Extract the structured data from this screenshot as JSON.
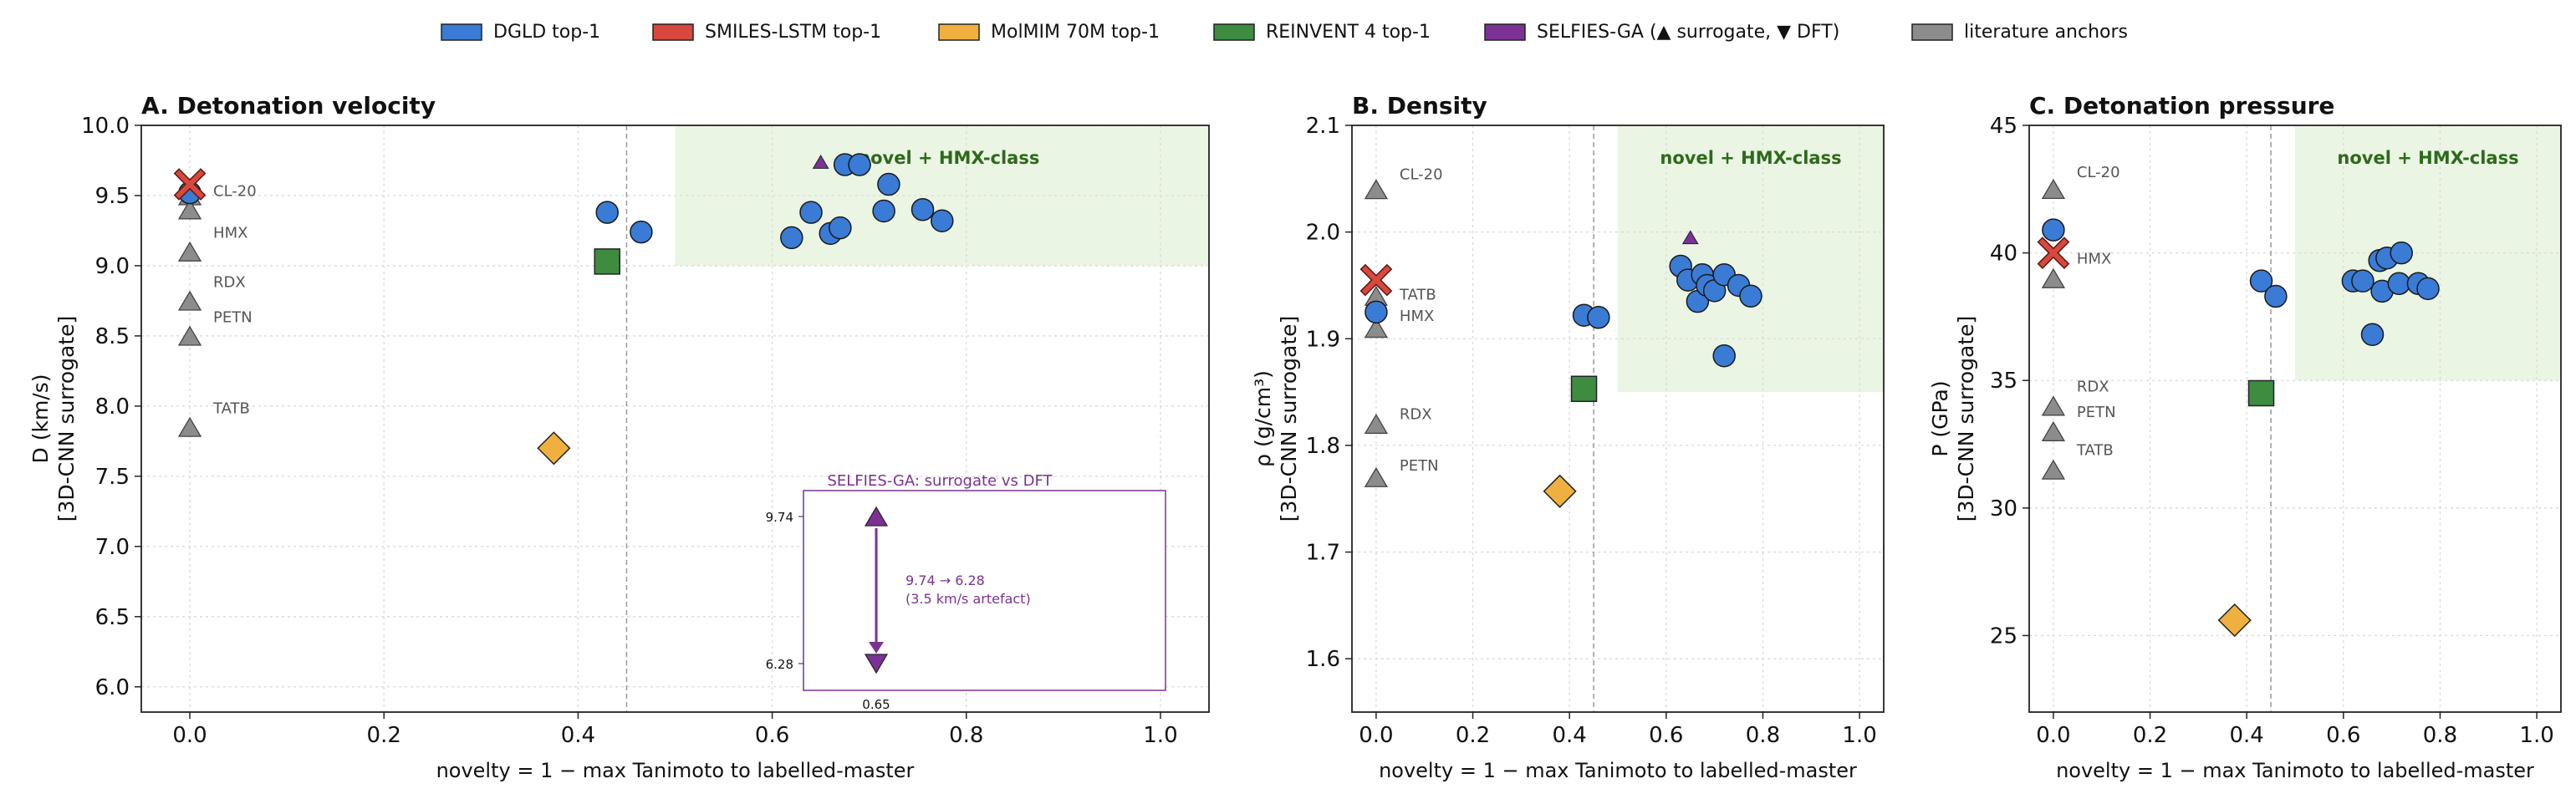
{
  "legend": {
    "position": "top-center",
    "items": [
      {
        "label": "DGLD top-1",
        "color": "#3a7bd5"
      },
      {
        "label": "SMILES-LSTM top-1",
        "color": "#d9473d"
      },
      {
        "label": "MolMIM 70M top-1",
        "color": "#f0b040"
      },
      {
        "label": "REINVENT 4 top-1",
        "color": "#3d8c40"
      },
      {
        "label": "SELFIES-GA (▲ surrogate, ▼ DFT)",
        "color": "#7b3294"
      },
      {
        "label": "literature anchors",
        "color": "#8c8c8c"
      }
    ]
  },
  "colors": {
    "dgld": "#3a7bd5",
    "lstm": "#d9473d",
    "molmim": "#f0b040",
    "reinvent": "#3d8c40",
    "ga": "#7b3294",
    "anchor": "#8c8c8c",
    "novel_region": "#eaf5e4",
    "novel_text": "#2d6a1a"
  },
  "chart_data": [
    {
      "type": "scatter",
      "title": "A. Detonation velocity",
      "xlabel": "novelty = 1 − max Tanimoto to labelled-master",
      "ylabel_line1": "D (km/s)",
      "ylabel_line2": "[3D-CNN surrogate]",
      "xlim": [
        -0.05,
        1.05
      ],
      "ylim": [
        5.82,
        10.0
      ],
      "xticks": [
        "0.0",
        "0.2",
        "0.4",
        "0.6",
        "0.8",
        "1.0"
      ],
      "yticks": [
        "6.0",
        "6.5",
        "7.0",
        "7.5",
        "8.0",
        "8.5",
        "9.0",
        "9.5",
        "10.0"
      ],
      "grid": true,
      "threshold_x": 0.45,
      "novel_region": {
        "x": [
          0.5,
          1.05
        ],
        "y": [
          9.0,
          10.0
        ],
        "label": "novel + HMX-class"
      },
      "anchors": [
        {
          "label": "CL-20",
          "x": 0.0,
          "y": 9.5
        },
        {
          "label": "HMX",
          "x": 0.0,
          "y": 9.4
        },
        {
          "label": "RDX",
          "x": 0.0,
          "y": 9.1
        },
        {
          "label": "PETN",
          "x": 0.0,
          "y": 8.75
        },
        {
          "label": "TATB",
          "x": 0.0,
          "y": 8.5
        },
        {
          "label": "",
          "x": 0.0,
          "y": 7.85
        }
      ],
      "anchor_labels": [
        {
          "text": "CL-20",
          "x": 0.0,
          "y": 9.54
        },
        {
          "text": "HMX",
          "x": 0.0,
          "y": 9.24
        },
        {
          "text": "RDX",
          "x": 0.0,
          "y": 8.89
        },
        {
          "text": "PETN",
          "x": 0.0,
          "y": 8.64
        },
        {
          "text": "TATB",
          "x": 0.0,
          "y": 7.99
        }
      ],
      "dgld": [
        {
          "x": 0.0,
          "y": 9.52
        },
        {
          "x": 0.43,
          "y": 9.38
        },
        {
          "x": 0.465,
          "y": 9.24
        },
        {
          "x": 0.62,
          "y": 9.2
        },
        {
          "x": 0.64,
          "y": 9.38
        },
        {
          "x": 0.66,
          "y": 9.23
        },
        {
          "x": 0.67,
          "y": 9.27
        },
        {
          "x": 0.675,
          "y": 9.72
        },
        {
          "x": 0.69,
          "y": 9.72
        },
        {
          "x": 0.715,
          "y": 9.39
        },
        {
          "x": 0.72,
          "y": 9.58
        },
        {
          "x": 0.755,
          "y": 9.4
        },
        {
          "x": 0.775,
          "y": 9.32
        }
      ],
      "lstm": [
        {
          "x": 0.0,
          "y": 9.58
        }
      ],
      "molmim": [
        {
          "x": 0.375,
          "y": 7.7
        }
      ],
      "reinvent": [
        {
          "x": 0.43,
          "y": 9.03
        }
      ],
      "ga_surrogate": [
        {
          "x": 0.65,
          "y": 9.74
        }
      ],
      "inset": {
        "title": "SELFIES-GA: surrogate vs DFT",
        "surrogate": 9.74,
        "dft": 6.28,
        "surrogate_label": "9.74",
        "dft_label": "6.28",
        "x_label": "0.65",
        "note_line1": "9.74 → 6.28",
        "note_line2": "(3.5 km/s artefact)"
      }
    },
    {
      "type": "scatter",
      "title": "B. Density",
      "xlabel": "novelty = 1 − max Tanimoto to labelled-master",
      "ylabel_line1": "ρ (g/cm³)",
      "ylabel_line2": "[3D-CNN surrogate]",
      "xlim": [
        -0.05,
        1.05
      ],
      "ylim": [
        1.55,
        2.1
      ],
      "xticks": [
        "0.0",
        "0.2",
        "0.4",
        "0.6",
        "0.8",
        "1.0"
      ],
      "yticks": [
        "1.6",
        "1.7",
        "1.8",
        "1.9",
        "2.0",
        "2.1"
      ],
      "grid": true,
      "threshold_x": 0.45,
      "novel_region": {
        "x": [
          0.5,
          1.05
        ],
        "y": [
          1.85,
          2.1
        ],
        "label": "novel + HMX-class"
      },
      "anchors": [
        {
          "label": "CL-20",
          "x": 0.0,
          "y": 2.04
        },
        {
          "label": "TATB",
          "x": 0.0,
          "y": 1.94
        },
        {
          "label": "HMX",
          "x": 0.0,
          "y": 1.91
        },
        {
          "label": "RDX",
          "x": 0.0,
          "y": 1.82
        },
        {
          "label": "PETN",
          "x": 0.0,
          "y": 1.77
        }
      ],
      "anchor_labels": [
        {
          "text": "CL-20",
          "x": 0.0,
          "y": 2.055
        },
        {
          "text": "TATB",
          "x": 0.0,
          "y": 1.942
        },
        {
          "text": "HMX",
          "x": 0.0,
          "y": 1.922
        },
        {
          "text": "RDX",
          "x": 0.0,
          "y": 1.83
        },
        {
          "text": "PETN",
          "x": 0.0,
          "y": 1.782
        }
      ],
      "dgld": [
        {
          "x": 0.0,
          "y": 1.925
        },
        {
          "x": 0.43,
          "y": 1.922
        },
        {
          "x": 0.46,
          "y": 1.92
        },
        {
          "x": 0.63,
          "y": 1.968
        },
        {
          "x": 0.645,
          "y": 1.955
        },
        {
          "x": 0.665,
          "y": 1.935
        },
        {
          "x": 0.675,
          "y": 1.96
        },
        {
          "x": 0.685,
          "y": 1.95
        },
        {
          "x": 0.7,
          "y": 1.945
        },
        {
          "x": 0.72,
          "y": 1.96
        },
        {
          "x": 0.72,
          "y": 1.884
        },
        {
          "x": 0.75,
          "y": 1.95
        },
        {
          "x": 0.775,
          "y": 1.94
        }
      ],
      "lstm": [
        {
          "x": 0.0,
          "y": 1.955
        }
      ],
      "molmim": [
        {
          "x": 0.38,
          "y": 1.757
        }
      ],
      "reinvent": [
        {
          "x": 0.43,
          "y": 1.853
        }
      ],
      "ga_surrogate": [
        {
          "x": 0.65,
          "y": 1.995
        }
      ]
    },
    {
      "type": "scatter",
      "title": "C. Detonation pressure",
      "xlabel": "novelty = 1 − max Tanimoto to labelled-master",
      "ylabel_line1": "P (GPa)",
      "ylabel_line2": "[3D-CNN surrogate]",
      "xlim": [
        -0.05,
        1.05
      ],
      "ylim": [
        22.0,
        45.0
      ],
      "xticks": [
        "0.0",
        "0.2",
        "0.4",
        "0.6",
        "0.8",
        "1.0"
      ],
      "yticks": [
        "25",
        "30",
        "35",
        "40",
        "45"
      ],
      "grid": true,
      "threshold_x": 0.45,
      "novel_region": {
        "x": [
          0.5,
          1.05
        ],
        "y": [
          35.0,
          45.0
        ],
        "label": "novel + HMX-class"
      },
      "anchors": [
        {
          "label": "CL-20",
          "x": 0.0,
          "y": 42.5
        },
        {
          "label": "HMX",
          "x": 0.0,
          "y": 39.0
        },
        {
          "label": "RDX",
          "x": 0.0,
          "y": 34.0
        },
        {
          "label": "PETN",
          "x": 0.0,
          "y": 33.0
        },
        {
          "label": "TATB",
          "x": 0.0,
          "y": 31.5
        }
      ],
      "anchor_labels": [
        {
          "text": "CL-20",
          "x": 0.0,
          "y": 43.2
        },
        {
          "text": "HMX",
          "x": 0.0,
          "y": 39.8
        },
        {
          "text": "RDX",
          "x": 0.0,
          "y": 34.8
        },
        {
          "text": "PETN",
          "x": 0.0,
          "y": 33.8
        },
        {
          "text": "TATB",
          "x": 0.0,
          "y": 32.3
        }
      ],
      "dgld": [
        {
          "x": 0.0,
          "y": 40.9
        },
        {
          "x": 0.43,
          "y": 38.9
        },
        {
          "x": 0.46,
          "y": 38.3
        },
        {
          "x": 0.62,
          "y": 38.9
        },
        {
          "x": 0.64,
          "y": 38.9
        },
        {
          "x": 0.66,
          "y": 36.8
        },
        {
          "x": 0.675,
          "y": 39.7
        },
        {
          "x": 0.68,
          "y": 38.5
        },
        {
          "x": 0.69,
          "y": 39.8
        },
        {
          "x": 0.715,
          "y": 38.8
        },
        {
          "x": 0.72,
          "y": 40.0
        },
        {
          "x": 0.755,
          "y": 38.8
        },
        {
          "x": 0.775,
          "y": 38.6
        }
      ],
      "lstm": [
        {
          "x": 0.0,
          "y": 40.0
        }
      ],
      "molmim": [
        {
          "x": 0.375,
          "y": 25.6
        }
      ],
      "reinvent": [
        {
          "x": 0.43,
          "y": 34.5
        }
      ],
      "ga_surrogate": []
    }
  ]
}
